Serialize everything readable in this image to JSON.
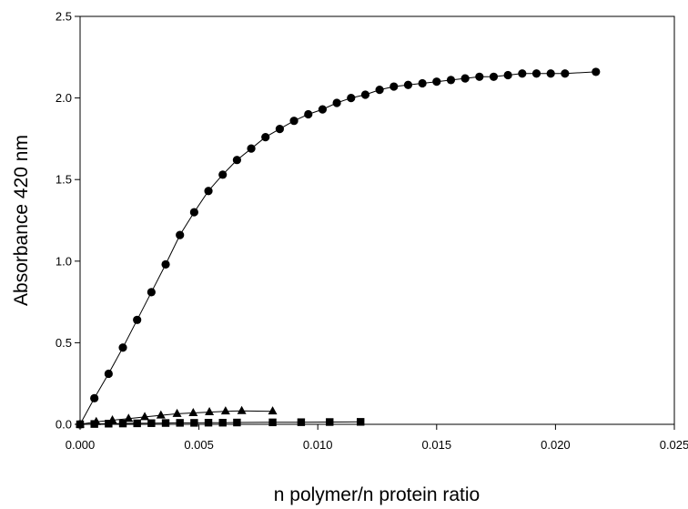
{
  "chart_data": {
    "type": "scatter",
    "title": "",
    "xlabel": "n polymer/n protein ratio",
    "ylabel": "Absorbance 420 nm",
    "xlim": [
      0,
      0.025
    ],
    "ylim": [
      0,
      2.5
    ],
    "xticks": [
      "0.000",
      "0.005",
      "0.010",
      "0.015",
      "0.020",
      "0.025"
    ],
    "yticks": [
      "0.0",
      "0.5",
      "1.0",
      "1.5",
      "2.0",
      "2.5"
    ],
    "grid": false,
    "legend": "none",
    "series": [
      {
        "marker": "circle",
        "color": "#000000",
        "connected": true,
        "x": [
          0,
          0.0006,
          0.0012,
          0.0018,
          0.0024,
          0.003,
          0.0036,
          0.0042,
          0.0048,
          0.0054,
          0.006,
          0.0066,
          0.0072,
          0.0078,
          0.0084,
          0.009,
          0.0096,
          0.0102,
          0.0108,
          0.0114,
          0.012,
          0.0126,
          0.0132,
          0.0138,
          0.0144,
          0.015,
          0.0156,
          0.0162,
          0.0168,
          0.0174,
          0.018,
          0.0186,
          0.0192,
          0.0198,
          0.0204,
          0.0217
        ],
        "y": [
          0,
          0.16,
          0.31,
          0.47,
          0.64,
          0.81,
          0.98,
          1.16,
          1.3,
          1.43,
          1.53,
          1.62,
          1.69,
          1.76,
          1.81,
          1.86,
          1.9,
          1.93,
          1.97,
          2.0,
          2.02,
          2.05,
          2.07,
          2.08,
          2.09,
          2.1,
          2.11,
          2.12,
          2.13,
          2.13,
          2.14,
          2.15,
          2.15,
          2.15,
          2.15,
          2.16
        ]
      },
      {
        "marker": "triangle",
        "color": "#000000",
        "connected": true,
        "x": [
          0,
          0.00068,
          0.00136,
          0.00204,
          0.00272,
          0.0034,
          0.00408,
          0.00476,
          0.00544,
          0.00612,
          0.0068,
          0.0081
        ],
        "y": [
          0,
          0.015,
          0.025,
          0.035,
          0.045,
          0.055,
          0.065,
          0.07,
          0.075,
          0.08,
          0.082,
          0.08
        ]
      },
      {
        "marker": "square",
        "color": "#000000",
        "connected": true,
        "x": [
          0,
          0.0006,
          0.0012,
          0.0018,
          0.0024,
          0.003,
          0.0036,
          0.0042,
          0.0048,
          0.0054,
          0.006,
          0.0066,
          0.0081,
          0.0093,
          0.0105,
          0.0118
        ],
        "y": [
          0,
          0.002,
          0.004,
          0.005,
          0.006,
          0.007,
          0.008,
          0.009,
          0.009,
          0.01,
          0.01,
          0.011,
          0.012,
          0.013,
          0.014,
          0.015
        ]
      }
    ]
  }
}
